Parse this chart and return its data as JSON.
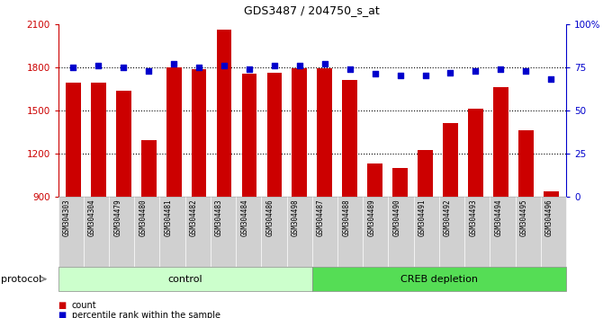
{
  "title": "GDS3487 / 204750_s_at",
  "samples": [
    "GSM304303",
    "GSM304304",
    "GSM304479",
    "GSM304480",
    "GSM304481",
    "GSM304482",
    "GSM304483",
    "GSM304484",
    "GSM304486",
    "GSM304498",
    "GSM304487",
    "GSM304488",
    "GSM304489",
    "GSM304490",
    "GSM304491",
    "GSM304492",
    "GSM304493",
    "GSM304494",
    "GSM304495",
    "GSM304496"
  ],
  "counts": [
    1690,
    1690,
    1640,
    1295,
    1800,
    1785,
    2060,
    1755,
    1760,
    1790,
    1790,
    1710,
    1135,
    1105,
    1225,
    1415,
    1510,
    1660,
    1365,
    940
  ],
  "percentiles": [
    75,
    76,
    75,
    73,
    77,
    75,
    76,
    74,
    76,
    76,
    77,
    74,
    71,
    70,
    70,
    72,
    73,
    74,
    73,
    68
  ],
  "ylim_left": [
    900,
    2100
  ],
  "ylim_right": [
    0,
    100
  ],
  "yticks_left": [
    900,
    1200,
    1500,
    1800,
    2100
  ],
  "yticks_right": [
    0,
    25,
    50,
    75,
    100
  ],
  "ytick_labels_right": [
    "0",
    "25",
    "50",
    "75",
    "100%"
  ],
  "bar_color": "#cc0000",
  "dot_color": "#0000cc",
  "bg_color": "#ffffff",
  "control_count": 10,
  "creb_count": 10,
  "control_label": "control",
  "creb_label": "CREB depletion",
  "protocol_label": "protocol",
  "legend_count_label": "count",
  "legend_pct_label": "percentile rank within the sample",
  "control_color": "#ccffcc",
  "creb_color": "#55dd55",
  "label_bg_color": "#d0d0d0",
  "hline_values": [
    1200,
    1500,
    1800
  ],
  "baseline": 900
}
